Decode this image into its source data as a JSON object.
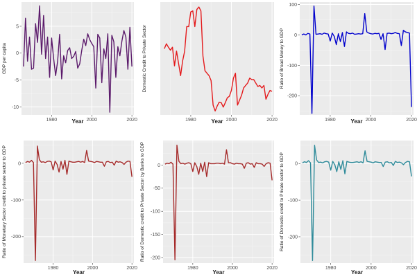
{
  "chart_data": [
    {
      "type": "line",
      "panel": "gdp-per-capita",
      "color": "#5b1a6b",
      "xlabel": "Year",
      "ylabel": "GDP per capita",
      "xlim": [
        1965,
        2021
      ],
      "ylim": [
        -11.5,
        9.5
      ],
      "xticks": [
        "1980",
        "2000",
        "2020"
      ],
      "yticks": [
        "5",
        "0",
        "-5",
        "-10"
      ],
      "grid": true,
      "x": [
        1966,
        1967,
        1968,
        1969,
        1970,
        1971,
        1972,
        1973,
        1974,
        1975,
        1976,
        1977,
        1978,
        1979,
        1980,
        1981,
        1982,
        1983,
        1984,
        1985,
        1986,
        1987,
        1988,
        1989,
        1990,
        1991,
        1992,
        1993,
        1994,
        1995,
        1996,
        1997,
        1998,
        1999,
        2000,
        2001,
        2002,
        2003,
        2004,
        2005,
        2006,
        2007,
        2008,
        2009,
        2010,
        2011,
        2012,
        2013,
        2014,
        2015,
        2016,
        2017,
        2018,
        2019,
        2020
      ],
      "y": [
        -2.5,
        6.5,
        -1.5,
        3,
        -3,
        -2.8,
        5.5,
        2,
        8.8,
        -0.2,
        7,
        -1,
        3,
        -4.5,
        2.8,
        -1,
        -4.2,
        -1.5,
        3.5,
        -4.8,
        -0.5,
        -1.8,
        0.5,
        1,
        -1,
        -0.6,
        0.3,
        -2.8,
        -2,
        0.5,
        2.6,
        1.4,
        3.6,
        2.5,
        1.8,
        1.2,
        -6.5,
        3.5,
        2.8,
        -5.5,
        0.8,
        -1,
        3.6,
        -11,
        3.3,
        2.1,
        -4.5,
        1.2,
        -0.5,
        2.2,
        4.2,
        3,
        -3,
        4.8,
        -2.5
      ]
    },
    {
      "type": "line",
      "panel": "domestic-credit",
      "color": "#e41a1c",
      "xlabel": "Year",
      "ylabel": "Domestic Credit to Private Sector",
      "xlim": [
        1965,
        2021
      ],
      "ylim": [
        3,
        26
      ],
      "xticks": [
        "1980",
        "2000",
        "2020"
      ],
      "yticks": [],
      "grid": true,
      "x": [
        1967,
        1968,
        1969,
        1970,
        1971,
        1972,
        1973,
        1974,
        1975,
        1976,
        1977,
        1978,
        1979,
        1980,
        1981,
        1982,
        1983,
        1984,
        1985,
        1986,
        1987,
        1988,
        1989,
        1990,
        1991,
        1992,
        1993,
        1994,
        1995,
        1996,
        1997,
        1998,
        1999,
        2000,
        2001,
        2002,
        2003,
        2004,
        2005,
        2006,
        2007,
        2008,
        2009,
        2010,
        2011,
        2012,
        2013,
        2014,
        2015,
        2016,
        2017,
        2018,
        2019,
        2020
      ],
      "y": [
        16.5,
        17.5,
        16.8,
        16.2,
        16.8,
        13,
        16,
        13.5,
        11,
        14,
        16,
        21,
        21,
        24,
        24.2,
        21,
        24.5,
        25,
        24.2,
        15,
        12,
        11.5,
        11,
        10,
        5,
        3.8,
        4.8,
        5.6,
        5.5,
        4.6,
        5.5,
        6.5,
        6.8,
        8,
        10.5,
        11.5,
        5,
        6,
        7,
        8.5,
        9,
        9.5,
        10.5,
        10.2,
        10.2,
        9.5,
        8.8,
        9,
        8.5,
        9,
        6.2,
        7.2,
        8,
        7.8
      ]
    },
    {
      "type": "line",
      "panel": "broad-money",
      "color": "#0000cc",
      "xlabel": "Year",
      "ylabel": "Ratio of Broad Money to GDP",
      "xlim": [
        1965,
        2021
      ],
      "ylim": [
        -263,
        108
      ],
      "xticks": [
        "1980",
        "2000",
        "2020"
      ],
      "yticks": [
        "100",
        "0",
        "-100",
        "-200"
      ],
      "grid": true,
      "x": [
        1966,
        1967,
        1968,
        1969,
        1970,
        1971,
        1972,
        1973,
        1974,
        1975,
        1976,
        1977,
        1978,
        1979,
        1980,
        1981,
        1982,
        1983,
        1984,
        1985,
        1986,
        1987,
        1988,
        1989,
        1990,
        1991,
        1992,
        1993,
        1994,
        1995,
        1996,
        1997,
        1998,
        1999,
        2000,
        2001,
        2002,
        2003,
        2004,
        2005,
        2006,
        2007,
        2008,
        2009,
        2010,
        2011,
        2012,
        2013,
        2014,
        2015,
        2016,
        2017,
        2018,
        2019,
        2020
      ],
      "y": [
        0,
        3,
        0,
        5,
        3,
        -258,
        95,
        2,
        3,
        4,
        2,
        6,
        4,
        3,
        -20,
        6,
        -5,
        -32,
        4,
        -22,
        8,
        -38,
        10,
        5,
        4,
        6,
        2,
        3,
        4,
        3,
        4,
        70,
        10,
        6,
        4,
        3,
        5,
        4,
        5,
        -15,
        4,
        -48,
        5,
        6,
        4,
        5,
        8,
        5,
        4,
        -35,
        15,
        10,
        8,
        6,
        -237
      ]
    },
    {
      "type": "line",
      "panel": "monetary-sector-credit",
      "color": "#a52a2a",
      "xlabel": "Year",
      "ylabel": "Ratio of Monetary Sector credit to private sector to GDP",
      "xlim": [
        1965,
        2021
      ],
      "ylim": [
        -272,
        62
      ],
      "xticks": [
        "1980",
        "2000",
        "2020"
      ],
      "yticks": [
        "0",
        "-100",
        "-200"
      ],
      "grid": true,
      "x": [
        1966,
        1967,
        1968,
        1969,
        1970,
        1971,
        1972,
        1973,
        1974,
        1975,
        1976,
        1977,
        1978,
        1979,
        1980,
        1981,
        1982,
        1983,
        1984,
        1985,
        1986,
        1987,
        1988,
        1989,
        1990,
        1991,
        1992,
        1993,
        1994,
        1995,
        1996,
        1997,
        1998,
        1999,
        2000,
        2001,
        2002,
        2003,
        2004,
        2005,
        2006,
        2007,
        2008,
        2009,
        2010,
        2011,
        2012,
        2013,
        2014,
        2015,
        2016,
        2017,
        2018,
        2019,
        2020
      ],
      "y": [
        2,
        5,
        3,
        8,
        2,
        -265,
        47,
        10,
        3,
        4,
        2,
        5,
        6,
        4,
        -18,
        6,
        -3,
        -24,
        5,
        -16,
        8,
        -30,
        6,
        4,
        3,
        3,
        4,
        5,
        3,
        5,
        2,
        35,
        6,
        5,
        4,
        2,
        5,
        4,
        3,
        3,
        -8,
        4,
        5,
        2,
        3,
        -5,
        6,
        3,
        4,
        2,
        -3,
        3,
        6,
        5,
        -37
      ]
    },
    {
      "type": "line",
      "panel": "bank-credit",
      "color": "#a52a2a",
      "xlabel": "Year",
      "ylabel": "Ratio of Domestic credit to Private Sector by Banks to GDP",
      "xlim": [
        1965,
        2021
      ],
      "ylim": [
        -212,
        53
      ],
      "xticks": [
        "1980",
        "2000",
        "2020"
      ],
      "yticks": [
        "0",
        "-50",
        "-100",
        "-150",
        "-200"
      ],
      "grid": true,
      "x": [
        1966,
        1967,
        1968,
        1969,
        1970,
        1971,
        1972,
        1973,
        1974,
        1975,
        1976,
        1977,
        1978,
        1979,
        1980,
        1981,
        1982,
        1983,
        1984,
        1985,
        1986,
        1987,
        1988,
        1989,
        1990,
        1991,
        1992,
        1993,
        1994,
        1995,
        1996,
        1997,
        1998,
        1999,
        2000,
        2001,
        2002,
        2003,
        2004,
        2005,
        2006,
        2007,
        2008,
        2009,
        2010,
        2011,
        2012,
        2013,
        2014,
        2015,
        2016,
        2017,
        2018,
        2019,
        2020
      ],
      "y": [
        2,
        4,
        3,
        6,
        2,
        -205,
        43,
        8,
        3,
        4,
        2,
        4,
        5,
        3,
        -14,
        5,
        -3,
        -20,
        4,
        -14,
        6,
        -25,
        5,
        3,
        3,
        3,
        4,
        4,
        3,
        4,
        2,
        33,
        5,
        5,
        3,
        2,
        4,
        3,
        3,
        2,
        -7,
        4,
        5,
        2,
        3,
        -5,
        5,
        3,
        3,
        2,
        -3,
        3,
        5,
        4,
        -33
      ]
    },
    {
      "type": "line",
      "panel": "domestic-credit-ratio",
      "color": "#2e8b9a",
      "xlabel": "Year",
      "ylabel": "Ratio of Domestic credit to Private sector to GDP",
      "xlim": [
        1965,
        2021
      ],
      "ylim": [
        -272,
        63
      ],
      "xticks": [
        "1980",
        "2000",
        "2020"
      ],
      "yticks": [
        "0",
        "-100",
        "-200"
      ],
      "grid": true,
      "x": [
        1966,
        1967,
        1968,
        1969,
        1970,
        1971,
        1972,
        1973,
        1974,
        1975,
        1976,
        1977,
        1978,
        1979,
        1980,
        1981,
        1982,
        1983,
        1984,
        1985,
        1986,
        1987,
        1988,
        1989,
        1990,
        1991,
        1992,
        1993,
        1994,
        1995,
        1996,
        1997,
        1998,
        1999,
        2000,
        2001,
        2002,
        2003,
        2004,
        2005,
        2006,
        2007,
        2008,
        2009,
        2010,
        2011,
        2012,
        2013,
        2014,
        2015,
        2016,
        2017,
        2018,
        2019,
        2020
      ],
      "y": [
        2,
        5,
        3,
        8,
        2,
        -265,
        50,
        10,
        3,
        4,
        2,
        5,
        6,
        4,
        -18,
        6,
        -3,
        -22,
        5,
        -16,
        8,
        -28,
        6,
        4,
        3,
        3,
        4,
        5,
        3,
        5,
        2,
        35,
        6,
        5,
        4,
        2,
        5,
        4,
        3,
        3,
        -8,
        4,
        5,
        2,
        3,
        -5,
        6,
        3,
        4,
        2,
        -3,
        3,
        6,
        5,
        -35
      ]
    }
  ]
}
